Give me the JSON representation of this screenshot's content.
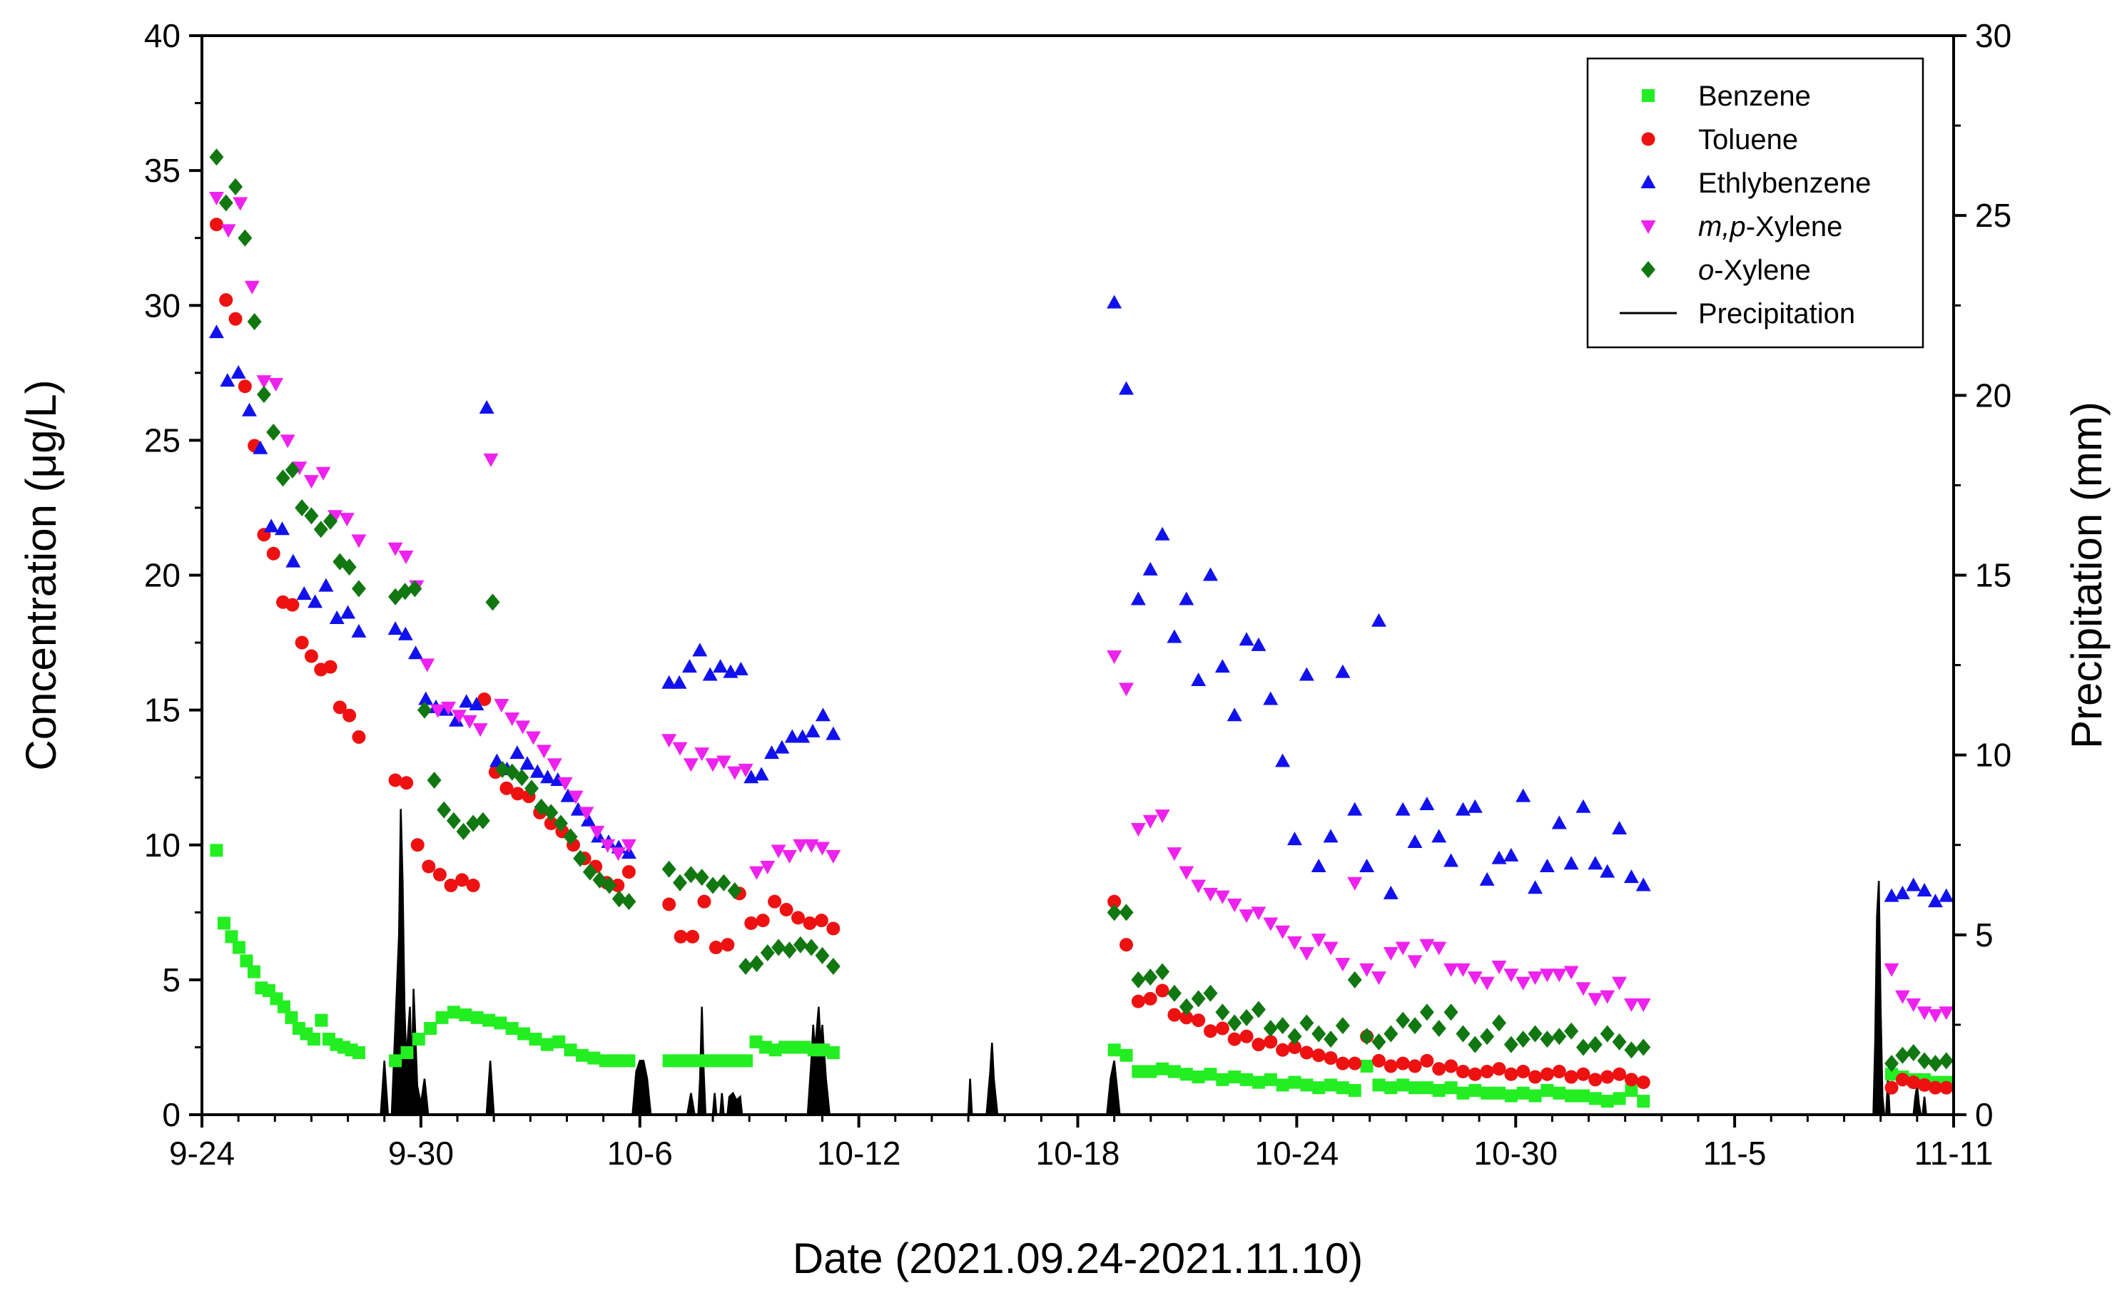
{
  "chart_data": {
    "type": "scatter",
    "xlabel": "Date (2021.09.24-2021.11.10)",
    "ylabel": "Concentration (μg/L)",
    "y2label": "Precipitation (mm)",
    "xlim": [
      0,
      48
    ],
    "ylim": [
      0,
      40
    ],
    "y2lim": [
      0,
      30
    ],
    "x_ticks": [
      {
        "x": 0,
        "label": "9-24"
      },
      {
        "x": 6,
        "label": "9-30"
      },
      {
        "x": 12,
        "label": "10-6"
      },
      {
        "x": 18,
        "label": "10-12"
      },
      {
        "x": 24,
        "label": "10-18"
      },
      {
        "x": 30,
        "label": "10-24"
      },
      {
        "x": 36,
        "label": "10-30"
      },
      {
        "x": 42,
        "label": "11-5"
      },
      {
        "x": 48,
        "label": "11-11"
      }
    ],
    "y_ticks": [
      0,
      5,
      10,
      15,
      20,
      25,
      30,
      35,
      40
    ],
    "y2_ticks": [
      0,
      5,
      10,
      15,
      20,
      25,
      30
    ],
    "legend_position": "top-right",
    "legend": [
      {
        "name": "Benzene",
        "marker": "square",
        "color": "#22ee22",
        "italic_prefix": "",
        "suffix": "Benzene"
      },
      {
        "name": "Toluene",
        "marker": "circle",
        "color": "#ee1111",
        "italic_prefix": "",
        "suffix": "Toluene"
      },
      {
        "name": "Ethlybenzene",
        "marker": "triangle-up",
        "color": "#1111ee",
        "italic_prefix": "",
        "suffix": "Ethlybenzene"
      },
      {
        "name": "m,p-Xylene",
        "marker": "triangle-down",
        "color": "#ee22ee",
        "italic_prefix": "m,p",
        "suffix": "-Xylene"
      },
      {
        "name": "o-Xylene",
        "marker": "diamond",
        "color": "#117711",
        "italic_prefix": "o",
        "suffix": "-Xylene"
      },
      {
        "name": "Precipitation",
        "marker": "line",
        "color": "#000000",
        "italic_prefix": "",
        "suffix": "Precipitation"
      }
    ],
    "segments": [
      {
        "x_start": 0.4,
        "x_end": 4.3,
        "series": {
          "Benzene": [
            9.8,
            7.1,
            6.6,
            6.2,
            5.7,
            5.3,
            4.7,
            4.6,
            4.3,
            4.0,
            3.6,
            3.2,
            3.0,
            2.8,
            3.5,
            2.8,
            2.6,
            2.5,
            2.4,
            2.3
          ],
          "Toluene": [
            33.0,
            30.2,
            29.5,
            27.0,
            24.8,
            21.5,
            20.8,
            19.0,
            18.9,
            17.5,
            17.0,
            16.5,
            16.6,
            15.1,
            14.8,
            14.0
          ],
          "Ethlybenzene": [
            29.0,
            27.2,
            27.5,
            26.1,
            24.7,
            21.8,
            21.7,
            20.5,
            19.3,
            19.0,
            19.6,
            18.4,
            18.6,
            17.9
          ],
          "m,p-Xylene": [
            34.0,
            32.8,
            33.8,
            30.7,
            27.2,
            27.1,
            25.0,
            24.0,
            23.5,
            23.8,
            22.2,
            22.1,
            21.3
          ],
          "o-Xylene": [
            35.5,
            33.8,
            34.4,
            32.5,
            29.4,
            26.7,
            25.3,
            23.6,
            23.9,
            22.5,
            22.2,
            21.7,
            22.0,
            20.5,
            20.3,
            19.5
          ]
        }
      },
      {
        "x_start": 5.3,
        "x_end": 11.7,
        "series": {
          "Benzene": [
            2.0,
            2.3,
            2.8,
            3.2,
            3.6,
            3.8,
            3.7,
            3.6,
            3.5,
            3.4,
            3.2,
            3.0,
            2.8,
            2.6,
            2.7,
            2.4,
            2.2,
            2.1,
            2.0,
            2.0,
            2.0
          ],
          "Toluene": [
            12.4,
            12.3,
            10.0,
            9.2,
            8.9,
            8.5,
            8.7,
            8.5,
            15.4,
            12.7,
            12.1,
            11.9,
            11.8,
            11.2,
            10.8,
            10.5,
            10.0,
            9.5,
            9.2,
            8.6,
            8.5,
            9.0
          ],
          "Ethlybenzene": [
            18.0,
            17.8,
            17.1,
            15.4,
            15.1,
            15.0,
            14.6,
            15.3,
            15.2,
            26.2,
            13.1,
            12.8,
            13.4,
            13.0,
            12.7,
            12.5,
            12.4,
            11.8,
            11.3,
            10.9,
            10.3,
            10.1,
            9.9,
            9.7
          ],
          "m,p-Xylene": [
            21.0,
            20.7,
            19.6,
            16.7,
            15.0,
            15.1,
            14.8,
            14.6,
            14.3,
            24.3,
            15.2,
            14.7,
            14.4,
            14.0,
            13.5,
            13.0,
            12.3,
            11.8,
            11.2,
            10.5,
            10.0,
            9.7,
            10.0
          ],
          "o-Xylene": [
            19.2,
            19.4,
            19.5,
            15.0,
            12.4,
            11.3,
            10.9,
            10.5,
            10.8,
            10.9,
            19.0,
            12.8,
            12.7,
            12.5,
            12.1,
            11.4,
            11.2,
            10.8,
            10.3,
            9.5,
            9.0,
            8.7,
            8.5,
            8.0,
            7.9
          ]
        }
      },
      {
        "x_start": 12.8,
        "x_end": 17.3,
        "series": {
          "Benzene": [
            2.0,
            2.0,
            2.0,
            2.0,
            2.0,
            2.0,
            2.0,
            2.0,
            2.0,
            2.7,
            2.5,
            2.4,
            2.5,
            2.5,
            2.5,
            2.4,
            2.4,
            2.3
          ],
          "Toluene": [
            7.8,
            6.6,
            6.6,
            7.9,
            6.2,
            6.3,
            8.2,
            7.1,
            7.2,
            7.9,
            7.6,
            7.3,
            7.1,
            7.2,
            6.9
          ],
          "Ethlybenzene": [
            16.0,
            16.0,
            16.6,
            17.2,
            16.3,
            16.6,
            16.4,
            16.5,
            12.5,
            12.6,
            13.4,
            13.6,
            14.0,
            14.0,
            14.2,
            14.8,
            14.1
          ],
          "m,p-Xylene": [
            13.9,
            13.6,
            13.0,
            13.4,
            13.0,
            13.1,
            12.7,
            12.8,
            9.0,
            9.2,
            9.8,
            9.6,
            10.0,
            10.0,
            9.9,
            9.6
          ],
          "o-Xylene": [
            9.1,
            8.6,
            8.9,
            8.8,
            8.5,
            8.6,
            8.3,
            5.5,
            5.6,
            6.0,
            6.2,
            6.1,
            6.3,
            6.2,
            5.9,
            5.5
          ]
        }
      },
      {
        "x_start": 25.0,
        "x_end": 39.5,
        "series": {
          "Benzene": [
            2.4,
            2.2,
            1.6,
            1.6,
            1.7,
            1.6,
            1.5,
            1.4,
            1.5,
            1.3,
            1.4,
            1.3,
            1.2,
            1.3,
            1.1,
            1.2,
            1.1,
            1.0,
            1.1,
            1.0,
            0.9,
            1.8,
            1.1,
            1.0,
            1.1,
            1.0,
            1.0,
            0.9,
            1.0,
            0.8,
            0.9,
            0.8,
            0.8,
            0.7,
            0.8,
            0.7,
            0.9,
            0.8,
            0.7,
            0.7,
            0.6,
            0.5,
            0.6,
            0.9,
            0.5
          ],
          "Toluene": [
            7.9,
            6.3,
            4.2,
            4.3,
            4.6,
            3.7,
            3.6,
            3.5,
            3.1,
            3.2,
            2.8,
            2.9,
            2.6,
            2.7,
            2.4,
            2.5,
            2.3,
            2.2,
            2.1,
            1.9,
            1.9,
            2.9,
            2.0,
            1.8,
            1.9,
            1.8,
            2.0,
            1.7,
            1.8,
            1.6,
            1.5,
            1.6,
            1.7,
            1.5,
            1.6,
            1.4,
            1.5,
            1.6,
            1.4,
            1.5,
            1.3,
            1.4,
            1.5,
            1.3,
            1.2
          ],
          "Ethlybenzene": [
            30.1,
            26.9,
            19.1,
            20.2,
            21.5,
            17.7,
            19.1,
            16.1,
            20.0,
            16.6,
            14.8,
            17.6,
            17.4,
            15.4,
            13.1,
            10.2,
            16.3,
            9.2,
            10.3,
            16.4,
            11.3,
            9.2,
            18.3,
            8.2,
            11.3,
            10.1,
            11.5,
            10.3,
            9.4,
            11.3,
            11.4,
            8.7,
            9.5,
            9.6,
            11.8,
            8.4,
            9.2,
            10.8,
            9.3,
            11.4,
            9.3,
            9.0,
            10.6,
            8.8,
            8.5
          ],
          "m,p-Xylene": [
            17.0,
            15.8,
            10.6,
            10.9,
            11.1,
            9.7,
            9.0,
            8.5,
            8.2,
            8.1,
            7.8,
            7.4,
            7.5,
            7.1,
            6.8,
            6.4,
            6.0,
            6.5,
            6.2,
            5.6,
            8.6,
            5.4,
            5.1,
            6.0,
            6.2,
            5.7,
            6.3,
            6.2,
            5.4,
            5.4,
            5.1,
            4.9,
            5.5,
            5.2,
            4.9,
            5.1,
            5.2,
            5.2,
            5.3,
            4.7,
            4.3,
            4.4,
            4.9,
            4.1,
            4.1
          ],
          "o-Xylene": [
            7.5,
            7.5,
            5.0,
            5.1,
            5.3,
            4.5,
            4.0,
            4.3,
            4.5,
            3.8,
            3.4,
            3.6,
            3.9,
            3.2,
            3.3,
            2.9,
            3.4,
            3.0,
            2.8,
            3.3,
            5.0,
            2.9,
            2.7,
            3.0,
            3.5,
            3.3,
            3.8,
            3.2,
            3.8,
            3.0,
            2.6,
            2.9,
            3.4,
            2.6,
            2.8,
            3.0,
            2.8,
            2.9,
            3.1,
            2.5,
            2.6,
            3.0,
            2.7,
            2.4,
            2.5
          ]
        }
      },
      {
        "x_start": 46.3,
        "x_end": 47.8,
        "series": {
          "Benzene": [
            1.5,
            1.4,
            1.3,
            1.3,
            1.2,
            1.2
          ],
          "Toluene": [
            1.0,
            1.3,
            1.2,
            1.1,
            1.0,
            1.0
          ],
          "Ethlybenzene": [
            8.1,
            8.2,
            8.5,
            8.3,
            7.9,
            8.1
          ],
          "m,p-Xylene": [
            5.4,
            4.4,
            4.1,
            3.8,
            3.7,
            3.8
          ],
          "o-Xylene": [
            1.9,
            2.2,
            2.3,
            2.0,
            1.9,
            2.0
          ]
        }
      }
    ],
    "precipitation": [
      [
        4.9,
        0
      ],
      [
        5.0,
        1.5
      ],
      [
        5.1,
        0
      ],
      [
        5.2,
        0
      ],
      [
        5.3,
        2.5
      ],
      [
        5.4,
        5.0
      ],
      [
        5.45,
        8.5
      ],
      [
        5.5,
        6.5
      ],
      [
        5.55,
        3.0
      ],
      [
        5.6,
        1.5
      ],
      [
        5.7,
        3.0
      ],
      [
        5.75,
        1.0
      ],
      [
        5.8,
        3.5
      ],
      [
        5.85,
        2.2
      ],
      [
        5.9,
        0.8
      ],
      [
        6.0,
        0.3
      ],
      [
        6.1,
        1.0
      ],
      [
        6.2,
        0
      ],
      [
        7.8,
        0
      ],
      [
        7.9,
        1.5
      ],
      [
        8.0,
        0
      ],
      [
        11.8,
        0
      ],
      [
        11.9,
        1.2
      ],
      [
        12.0,
        1.5
      ],
      [
        12.1,
        1.5
      ],
      [
        12.2,
        1.0
      ],
      [
        12.3,
        0
      ],
      [
        13.3,
        0
      ],
      [
        13.4,
        0.6
      ],
      [
        13.5,
        0
      ],
      [
        13.6,
        0
      ],
      [
        13.65,
        1.0
      ],
      [
        13.7,
        3.0
      ],
      [
        13.75,
        1.2
      ],
      [
        13.8,
        0
      ],
      [
        14.0,
        0
      ],
      [
        14.05,
        0.6
      ],
      [
        14.1,
        0
      ],
      [
        14.2,
        0
      ],
      [
        14.25,
        0.6
      ],
      [
        14.3,
        0
      ],
      [
        14.4,
        0
      ],
      [
        14.45,
        0.5
      ],
      [
        14.55,
        0.6
      ],
      [
        14.65,
        0.4
      ],
      [
        14.75,
        0.5
      ],
      [
        14.8,
        0
      ],
      [
        16.6,
        0
      ],
      [
        16.7,
        1.5
      ],
      [
        16.75,
        2.5
      ],
      [
        16.8,
        1.8
      ],
      [
        16.9,
        3.0
      ],
      [
        16.95,
        2.0
      ],
      [
        17.0,
        2.5
      ],
      [
        17.1,
        1.0
      ],
      [
        17.2,
        0
      ],
      [
        21.0,
        0
      ],
      [
        21.05,
        1.0
      ],
      [
        21.1,
        0
      ],
      [
        21.5,
        0
      ],
      [
        21.6,
        1.2
      ],
      [
        21.65,
        2.0
      ],
      [
        21.7,
        1.0
      ],
      [
        21.75,
        0.5
      ],
      [
        21.8,
        0
      ],
      [
        24.8,
        0
      ],
      [
        24.9,
        1.0
      ],
      [
        25.0,
        1.5
      ],
      [
        25.1,
        0.5
      ],
      [
        25.15,
        0
      ],
      [
        45.8,
        0
      ],
      [
        45.85,
        2.0
      ],
      [
        45.9,
        5.5
      ],
      [
        45.95,
        6.5
      ],
      [
        46.0,
        3.0
      ],
      [
        46.05,
        0.5
      ],
      [
        46.1,
        0
      ],
      [
        46.15,
        0
      ],
      [
        46.2,
        1.0
      ],
      [
        46.25,
        0
      ],
      [
        46.9,
        0
      ],
      [
        46.95,
        0.5
      ],
      [
        47.0,
        0.8
      ],
      [
        47.05,
        0.3
      ],
      [
        47.1,
        0
      ],
      [
        47.15,
        0
      ],
      [
        47.2,
        0.5
      ],
      [
        47.25,
        0
      ]
    ]
  }
}
